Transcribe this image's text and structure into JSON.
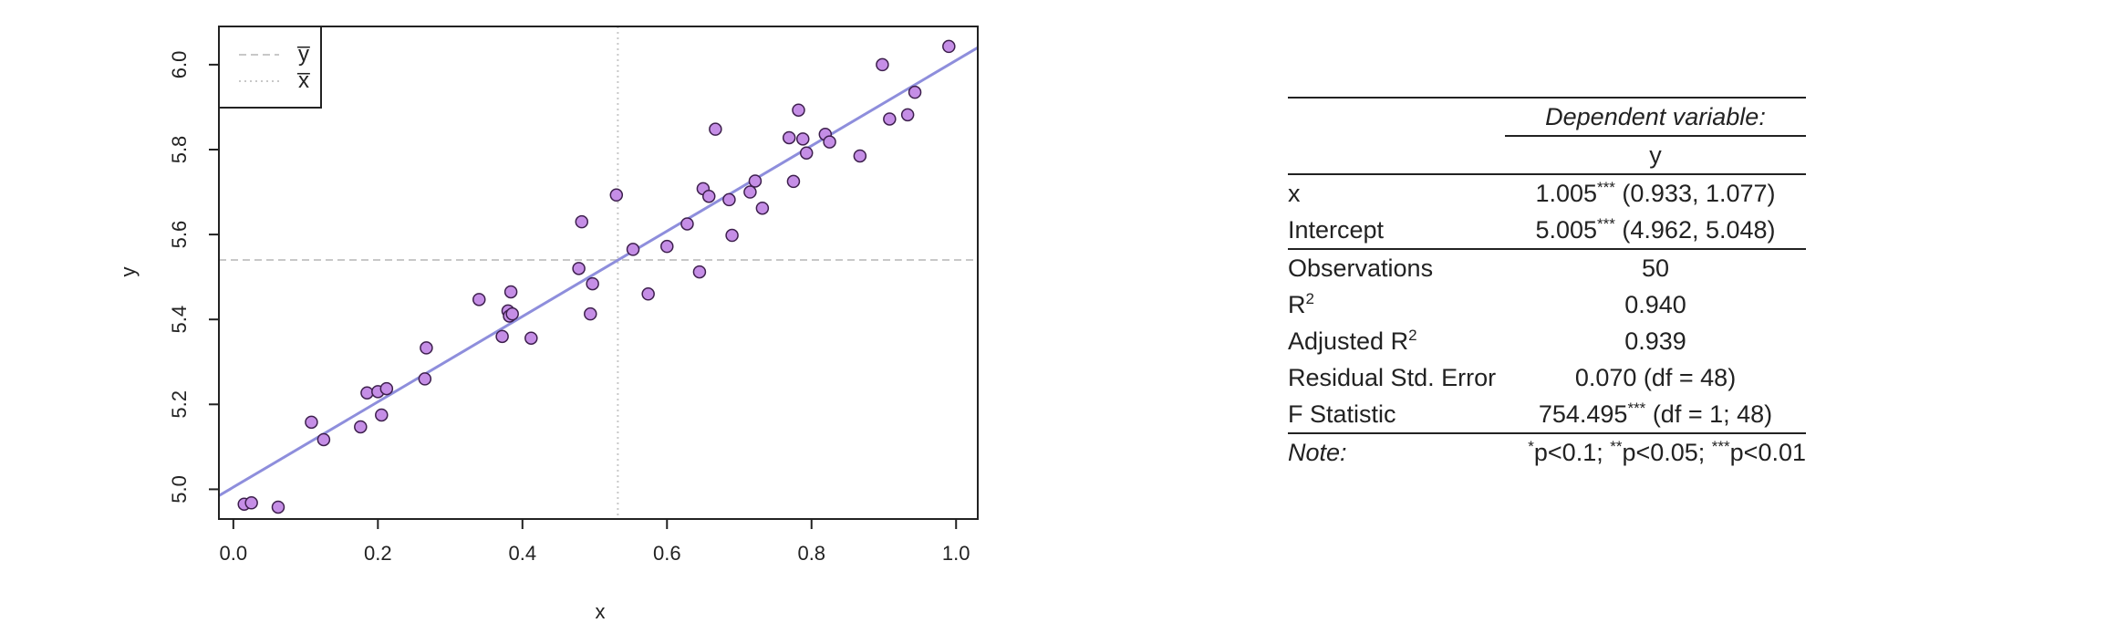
{
  "chart_data": {
    "type": "scatter",
    "xlabel": "x",
    "ylabel": "y",
    "xlim": [
      -0.02,
      1.03
    ],
    "ylim": [
      4.93,
      6.09
    ],
    "xticks": [
      "0.0",
      "0.2",
      "0.4",
      "0.6",
      "0.8",
      "1.0"
    ],
    "yticks": [
      "5.0",
      "5.2",
      "5.4",
      "5.6",
      "5.8",
      "6.0"
    ],
    "xtick_values": [
      0.0,
      0.2,
      0.4,
      0.6,
      0.8,
      1.0
    ],
    "ytick_values": [
      5.0,
      5.2,
      5.4,
      5.6,
      5.8,
      6.0
    ],
    "x_mean": 0.532,
    "y_mean": 5.54,
    "fit": {
      "slope": 1.005,
      "intercept": 5.005
    },
    "legend": {
      "position": "top-left",
      "entries": [
        "y̅",
        "x̅"
      ]
    },
    "colors": {
      "point_fill": "#c58ee6",
      "point_edge": "#3d1f4d",
      "fit_line": "#8e8edc",
      "guides": "#c8c8c8"
    },
    "points": [
      {
        "x": 0.015,
        "y": 4.965
      },
      {
        "x": 0.025,
        "y": 4.968
      },
      {
        "x": 0.062,
        "y": 4.958
      },
      {
        "x": 0.108,
        "y": 5.158
      },
      {
        "x": 0.125,
        "y": 5.117
      },
      {
        "x": 0.176,
        "y": 5.147
      },
      {
        "x": 0.185,
        "y": 5.227
      },
      {
        "x": 0.2,
        "y": 5.23
      },
      {
        "x": 0.205,
        "y": 5.175
      },
      {
        "x": 0.212,
        "y": 5.237
      },
      {
        "x": 0.265,
        "y": 5.26
      },
      {
        "x": 0.267,
        "y": 5.333
      },
      {
        "x": 0.34,
        "y": 5.447
      },
      {
        "x": 0.372,
        "y": 5.36
      },
      {
        "x": 0.38,
        "y": 5.42
      },
      {
        "x": 0.382,
        "y": 5.408
      },
      {
        "x": 0.384,
        "y": 5.465
      },
      {
        "x": 0.386,
        "y": 5.413
      },
      {
        "x": 0.412,
        "y": 5.356
      },
      {
        "x": 0.478,
        "y": 5.52
      },
      {
        "x": 0.482,
        "y": 5.63
      },
      {
        "x": 0.494,
        "y": 5.413
      },
      {
        "x": 0.497,
        "y": 5.484
      },
      {
        "x": 0.53,
        "y": 5.693
      },
      {
        "x": 0.553,
        "y": 5.565
      },
      {
        "x": 0.574,
        "y": 5.46
      },
      {
        "x": 0.6,
        "y": 5.572
      },
      {
        "x": 0.628,
        "y": 5.625
      },
      {
        "x": 0.645,
        "y": 5.512
      },
      {
        "x": 0.65,
        "y": 5.708
      },
      {
        "x": 0.658,
        "y": 5.69
      },
      {
        "x": 0.667,
        "y": 5.848
      },
      {
        "x": 0.686,
        "y": 5.682
      },
      {
        "x": 0.69,
        "y": 5.598
      },
      {
        "x": 0.715,
        "y": 5.7
      },
      {
        "x": 0.722,
        "y": 5.726
      },
      {
        "x": 0.732,
        "y": 5.662
      },
      {
        "x": 0.769,
        "y": 5.828
      },
      {
        "x": 0.775,
        "y": 5.725
      },
      {
        "x": 0.782,
        "y": 5.893
      },
      {
        "x": 0.788,
        "y": 5.825
      },
      {
        "x": 0.793,
        "y": 5.792
      },
      {
        "x": 0.819,
        "y": 5.836
      },
      {
        "x": 0.825,
        "y": 5.818
      },
      {
        "x": 0.867,
        "y": 5.785
      },
      {
        "x": 0.898,
        "y": 6.0
      },
      {
        "x": 0.908,
        "y": 5.872
      },
      {
        "x": 0.933,
        "y": 5.882
      },
      {
        "x": 0.943,
        "y": 5.935
      },
      {
        "x": 0.99,
        "y": 6.043
      }
    ]
  },
  "table": {
    "dep_var_label": "Dependent variable:",
    "dep_var_name": "y",
    "rows": [
      {
        "label": "x",
        "est": "1.005",
        "stars": "***",
        "ci": " (0.933, 1.077)"
      },
      {
        "label": "Intercept",
        "est": "5.005",
        "stars": "***",
        "ci": " (4.962, 5.048)"
      }
    ],
    "stats": {
      "obs_label": "Observations",
      "obs_value": "50",
      "r2_label": "R",
      "r2_sup": "2",
      "r2_value": "0.940",
      "adj_r2_label": "Adjusted R",
      "adj_r2_sup": "2",
      "adj_r2_value": "0.939",
      "rse_label": "Residual Std. Error",
      "rse_value": "0.070 (df = 48)",
      "f_label": "F Statistic",
      "f_value": "754.495",
      "f_stars": "***",
      "f_df": " (df = 1; 48)"
    },
    "note": {
      "label": "Note:",
      "s1": "*",
      "t1": "p<0.1; ",
      "s2": "**",
      "t2": "p<0.05; ",
      "s3": "***",
      "t3": "p<0.01"
    }
  }
}
